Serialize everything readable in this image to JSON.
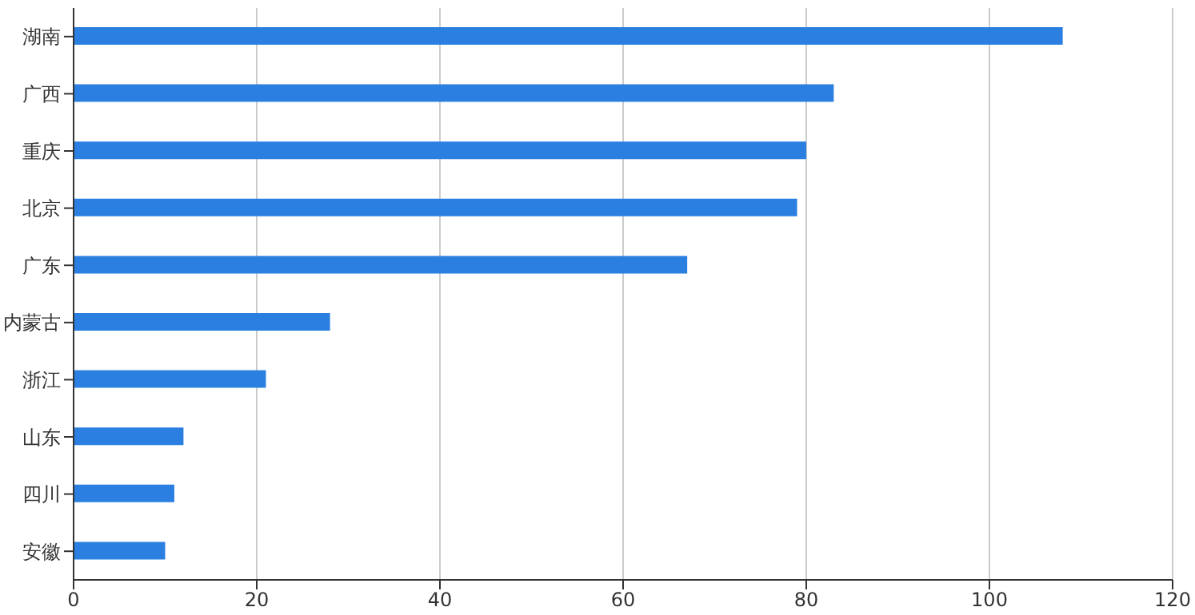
{
  "chart_data": {
    "type": "bar",
    "orientation": "horizontal",
    "categories": [
      "湖南",
      "广西",
      "重庆",
      "北京",
      "广东",
      "内蒙古",
      "浙江",
      "山东",
      "四川",
      "安徽"
    ],
    "values": [
      108,
      83,
      80,
      79,
      67,
      28,
      21,
      12,
      11,
      10
    ],
    "color": "#2a7fe0",
    "xlim": [
      0,
      120
    ],
    "xticks": [
      0,
      20,
      40,
      60,
      80,
      100,
      120
    ],
    "grid": "x"
  }
}
